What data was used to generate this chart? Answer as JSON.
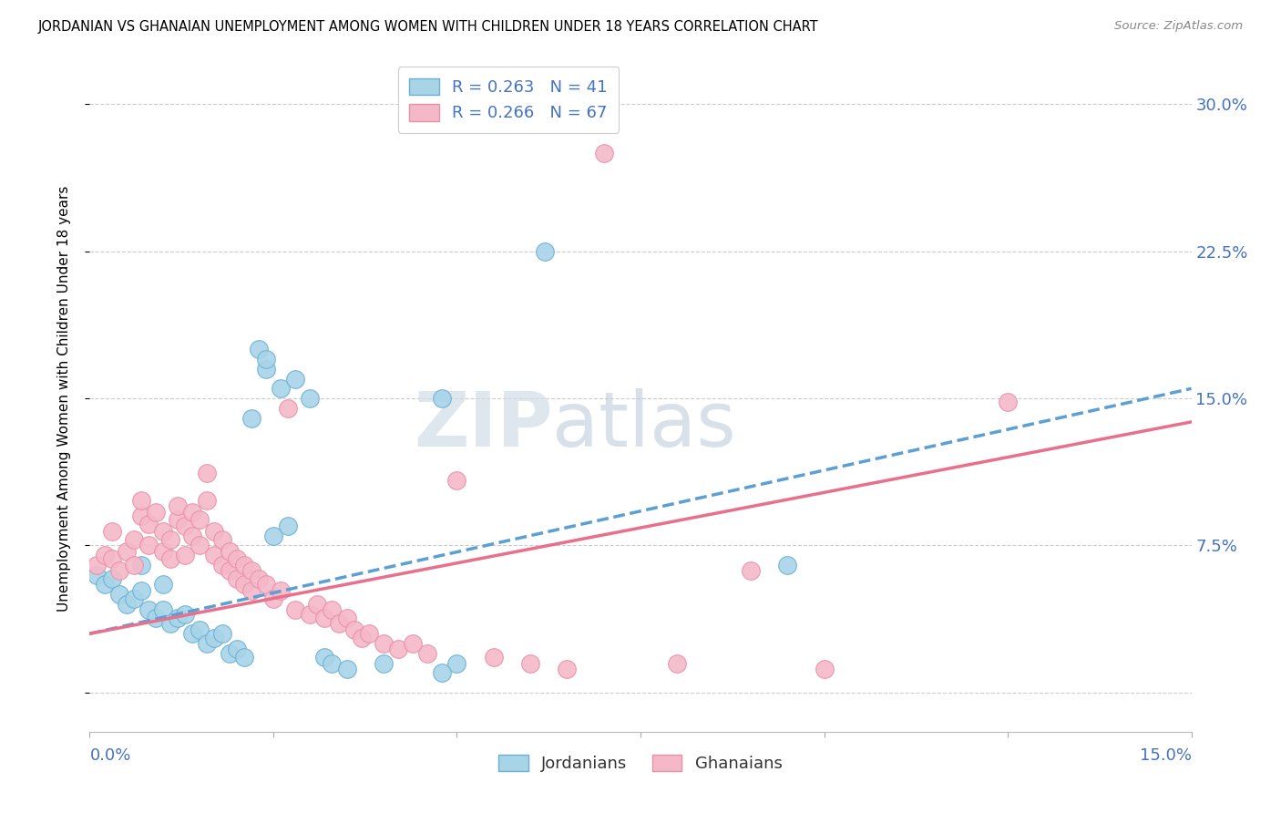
{
  "title": "JORDANIAN VS GHANAIAN UNEMPLOYMENT AMONG WOMEN WITH CHILDREN UNDER 18 YEARS CORRELATION CHART",
  "source": "Source: ZipAtlas.com",
  "ylabel": "Unemployment Among Women with Children Under 18 years",
  "xlim": [
    0.0,
    0.15
  ],
  "ylim": [
    -0.02,
    0.32
  ],
  "yticks": [
    0.0,
    0.075,
    0.15,
    0.225,
    0.3
  ],
  "ytick_labels": [
    "",
    "7.5%",
    "15.0%",
    "22.5%",
    "30.0%"
  ],
  "xticks": [
    0.0,
    0.025,
    0.05,
    0.075,
    0.1,
    0.125,
    0.15
  ],
  "jordan_color": "#a8d4e8",
  "jordan_edge": "#6ab0d4",
  "ghana_color": "#f5b8c8",
  "ghana_edge": "#e890a8",
  "jordan_line_color": "#5b9fd4",
  "ghana_line_color": "#e8708c",
  "jordan_R": 0.263,
  "jordan_N": 41,
  "ghana_R": 0.266,
  "ghana_N": 67,
  "watermark_zip": "ZIP",
  "watermark_atlas": "atlas",
  "jordan_points": [
    [
      0.001,
      0.06
    ],
    [
      0.002,
      0.055
    ],
    [
      0.003,
      0.058
    ],
    [
      0.004,
      0.05
    ],
    [
      0.005,
      0.045
    ],
    [
      0.006,
      0.048
    ],
    [
      0.007,
      0.052
    ],
    [
      0.007,
      0.065
    ],
    [
      0.008,
      0.042
    ],
    [
      0.009,
      0.038
    ],
    [
      0.01,
      0.042
    ],
    [
      0.01,
      0.055
    ],
    [
      0.011,
      0.035
    ],
    [
      0.012,
      0.038
    ],
    [
      0.013,
      0.04
    ],
    [
      0.014,
      0.03
    ],
    [
      0.015,
      0.032
    ],
    [
      0.016,
      0.025
    ],
    [
      0.017,
      0.028
    ],
    [
      0.018,
      0.03
    ],
    [
      0.019,
      0.02
    ],
    [
      0.02,
      0.022
    ],
    [
      0.021,
      0.018
    ],
    [
      0.022,
      0.14
    ],
    [
      0.023,
      0.175
    ],
    [
      0.024,
      0.165
    ],
    [
      0.024,
      0.17
    ],
    [
      0.025,
      0.08
    ],
    [
      0.026,
      0.155
    ],
    [
      0.027,
      0.085
    ],
    [
      0.028,
      0.16
    ],
    [
      0.03,
      0.15
    ],
    [
      0.032,
      0.018
    ],
    [
      0.033,
      0.015
    ],
    [
      0.035,
      0.012
    ],
    [
      0.04,
      0.015
    ],
    [
      0.048,
      0.15
    ],
    [
      0.05,
      0.015
    ],
    [
      0.062,
      0.225
    ],
    [
      0.095,
      0.065
    ],
    [
      0.048,
      0.01
    ]
  ],
  "ghana_points": [
    [
      0.001,
      0.065
    ],
    [
      0.002,
      0.07
    ],
    [
      0.003,
      0.068
    ],
    [
      0.003,
      0.082
    ],
    [
      0.004,
      0.062
    ],
    [
      0.005,
      0.072
    ],
    [
      0.006,
      0.078
    ],
    [
      0.006,
      0.065
    ],
    [
      0.007,
      0.09
    ],
    [
      0.007,
      0.098
    ],
    [
      0.008,
      0.086
    ],
    [
      0.008,
      0.075
    ],
    [
      0.009,
      0.092
    ],
    [
      0.01,
      0.082
    ],
    [
      0.01,
      0.072
    ],
    [
      0.011,
      0.068
    ],
    [
      0.011,
      0.078
    ],
    [
      0.012,
      0.088
    ],
    [
      0.012,
      0.095
    ],
    [
      0.013,
      0.07
    ],
    [
      0.013,
      0.085
    ],
    [
      0.014,
      0.092
    ],
    [
      0.014,
      0.08
    ],
    [
      0.015,
      0.075
    ],
    [
      0.015,
      0.088
    ],
    [
      0.016,
      0.112
    ],
    [
      0.016,
      0.098
    ],
    [
      0.017,
      0.082
    ],
    [
      0.017,
      0.07
    ],
    [
      0.018,
      0.065
    ],
    [
      0.018,
      0.078
    ],
    [
      0.019,
      0.062
    ],
    [
      0.019,
      0.072
    ],
    [
      0.02,
      0.058
    ],
    [
      0.02,
      0.068
    ],
    [
      0.021,
      0.055
    ],
    [
      0.021,
      0.065
    ],
    [
      0.022,
      0.052
    ],
    [
      0.022,
      0.062
    ],
    [
      0.023,
      0.058
    ],
    [
      0.024,
      0.055
    ],
    [
      0.025,
      0.048
    ],
    [
      0.026,
      0.052
    ],
    [
      0.027,
      0.145
    ],
    [
      0.028,
      0.042
    ],
    [
      0.03,
      0.04
    ],
    [
      0.031,
      0.045
    ],
    [
      0.032,
      0.038
    ],
    [
      0.033,
      0.042
    ],
    [
      0.034,
      0.035
    ],
    [
      0.035,
      0.038
    ],
    [
      0.036,
      0.032
    ],
    [
      0.037,
      0.028
    ],
    [
      0.038,
      0.03
    ],
    [
      0.04,
      0.025
    ],
    [
      0.042,
      0.022
    ],
    [
      0.044,
      0.025
    ],
    [
      0.046,
      0.02
    ],
    [
      0.05,
      0.108
    ],
    [
      0.055,
      0.018
    ],
    [
      0.06,
      0.015
    ],
    [
      0.065,
      0.012
    ],
    [
      0.07,
      0.275
    ],
    [
      0.08,
      0.015
    ],
    [
      0.09,
      0.062
    ],
    [
      0.1,
      0.012
    ],
    [
      0.125,
      0.148
    ]
  ]
}
